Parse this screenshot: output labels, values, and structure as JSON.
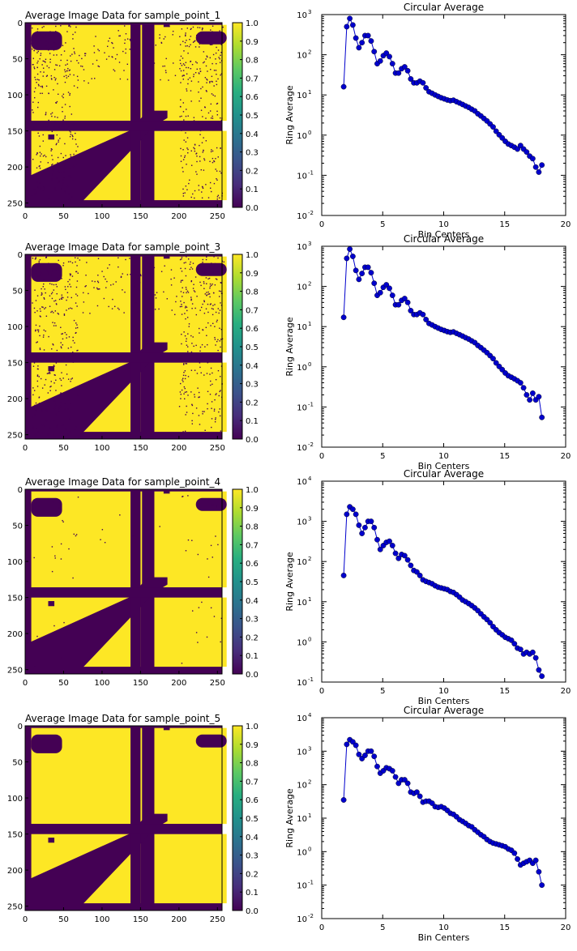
{
  "figure": {
    "background": "#ffffff"
  },
  "chart_data": [
    {
      "type": "heatmap",
      "title": "Average Image Data for sample_point_1",
      "xlim": [
        0,
        256
      ],
      "ylim": [
        256,
        0
      ],
      "xticks": [
        0,
        50,
        100,
        150,
        200,
        250
      ],
      "yticks": [
        0,
        50,
        100,
        150,
        200,
        250
      ],
      "colorbar": {
        "range": [
          0,
          1
        ],
        "ticks": [
          "0.0",
          "0.1",
          "0.2",
          "0.3",
          "0.4",
          "0.5",
          "0.6",
          "0.7",
          "0.8",
          "0.9",
          "1.0"
        ],
        "colormap": "viridis"
      },
      "speckle": "heavy",
      "colors": {
        "low": "#440154",
        "high": "#fde725"
      }
    },
    {
      "type": "scatter",
      "title": "Circular Average",
      "xlabel": "Bin Centers",
      "ylabel": "Ring Average",
      "xlim": [
        0,
        20
      ],
      "xticks": [
        0,
        5,
        10,
        15,
        20
      ],
      "yscale": "log",
      "ylim_exp": [
        -2,
        3
      ],
      "marker_color": "#0000cc",
      "x": [
        1.8,
        2.05,
        2.3,
        2.55,
        2.8,
        3.05,
        3.3,
        3.55,
        3.8,
        4.05,
        4.3,
        4.55,
        4.8,
        5.05,
        5.3,
        5.55,
        5.8,
        6.05,
        6.3,
        6.55,
        6.8,
        7.05,
        7.3,
        7.55,
        7.8,
        8.05,
        8.3,
        8.55,
        8.8,
        9.05,
        9.3,
        9.55,
        9.8,
        10.05,
        10.3,
        10.55,
        10.8,
        11.05,
        11.3,
        11.55,
        11.8,
        12.05,
        12.3,
        12.55,
        12.8,
        13.05,
        13.3,
        13.55,
        13.8,
        14.05,
        14.3,
        14.55,
        14.8,
        15.05,
        15.3,
        15.55,
        15.8,
        16.05,
        16.3,
        16.55,
        16.8,
        17.05,
        17.3,
        17.55,
        17.8,
        18.05
      ],
      "y": [
        16,
        500,
        800,
        550,
        260,
        150,
        200,
        300,
        300,
        220,
        120,
        60,
        70,
        95,
        110,
        90,
        60,
        35,
        35,
        45,
        50,
        40,
        25,
        20,
        20,
        22,
        20,
        15,
        12,
        11,
        10,
        9.2,
        8.5,
        8,
        7.5,
        7.2,
        7.4,
        6.8,
        6.3,
        5.8,
        5.3,
        4.9,
        4.4,
        4.0,
        3.4,
        3.0,
        2.6,
        2.25,
        1.9,
        1.6,
        1.25,
        1.02,
        0.85,
        0.7,
        0.6,
        0.55,
        0.5,
        0.45,
        0.55,
        0.45,
        0.38,
        0.3,
        0.26,
        0.16,
        0.12,
        0.18
      ]
    },
    {
      "type": "heatmap",
      "title": "Average Image Data for sample_point_3",
      "xlim": [
        0,
        256
      ],
      "ylim": [
        256,
        0
      ],
      "xticks": [
        0,
        50,
        100,
        150,
        200,
        250
      ],
      "yticks": [
        0,
        50,
        100,
        150,
        200,
        250
      ],
      "colorbar": {
        "range": [
          0,
          1
        ],
        "ticks": [
          "0.0",
          "0.1",
          "0.2",
          "0.3",
          "0.4",
          "0.5",
          "0.6",
          "0.7",
          "0.8",
          "0.9",
          "1.0"
        ],
        "colormap": "viridis"
      },
      "speckle": "heavy",
      "colors": {
        "low": "#440154",
        "high": "#fde725"
      }
    },
    {
      "type": "scatter",
      "title": "Circular Average",
      "xlabel": "Bin Centers",
      "ylabel": "Ring Average",
      "xlim": [
        0,
        20
      ],
      "xticks": [
        0,
        5,
        10,
        15,
        20
      ],
      "yscale": "log",
      "ylim_exp": [
        -2,
        3
      ],
      "marker_color": "#0000cc",
      "x": [
        1.8,
        2.05,
        2.3,
        2.55,
        2.8,
        3.05,
        3.3,
        3.55,
        3.8,
        4.05,
        4.3,
        4.55,
        4.8,
        5.05,
        5.3,
        5.55,
        5.8,
        6.05,
        6.3,
        6.55,
        6.8,
        7.05,
        7.3,
        7.55,
        7.8,
        8.05,
        8.3,
        8.55,
        8.8,
        9.05,
        9.3,
        9.55,
        9.8,
        10.05,
        10.3,
        10.55,
        10.8,
        11.05,
        11.3,
        11.55,
        11.8,
        12.05,
        12.3,
        12.55,
        12.8,
        13.05,
        13.3,
        13.55,
        13.8,
        14.05,
        14.3,
        14.55,
        14.8,
        15.05,
        15.3,
        15.55,
        15.8,
        16.05,
        16.3,
        16.55,
        16.8,
        17.05,
        17.3,
        17.55,
        17.8,
        18.05
      ],
      "y": [
        17,
        500,
        850,
        560,
        250,
        150,
        210,
        300,
        300,
        220,
        120,
        60,
        70,
        95,
        110,
        90,
        60,
        35,
        35,
        45,
        50,
        40,
        25,
        20,
        20,
        22,
        20,
        15,
        12,
        11,
        10,
        9.2,
        8.5,
        8,
        7.5,
        7.2,
        7.4,
        6.8,
        6.3,
        5.8,
        5.3,
        4.9,
        4.4,
        4.0,
        3.4,
        3.0,
        2.6,
        2.25,
        1.9,
        1.6,
        1.25,
        1.02,
        0.85,
        0.7,
        0.6,
        0.55,
        0.5,
        0.45,
        0.4,
        0.3,
        0.2,
        0.15,
        0.22,
        0.15,
        0.18,
        0.055
      ]
    },
    {
      "type": "heatmap",
      "title": "Average Image Data for sample_point_4",
      "xlim": [
        0,
        256
      ],
      "ylim": [
        256,
        0
      ],
      "xticks": [
        0,
        50,
        100,
        150,
        200,
        250
      ],
      "yticks": [
        0,
        50,
        100,
        150,
        200,
        250
      ],
      "colorbar": {
        "range": [
          0,
          1
        ],
        "ticks": [
          "0.0",
          "0.1",
          "0.2",
          "0.3",
          "0.4",
          "0.5",
          "0.6",
          "0.7",
          "0.8",
          "0.9",
          "1.0"
        ],
        "colormap": "viridis"
      },
      "speckle": "light",
      "colors": {
        "low": "#440154",
        "high": "#fde725"
      }
    },
    {
      "type": "scatter",
      "title": "Circular Average",
      "xlabel": "Bin Centers",
      "ylabel": "Ring Average",
      "xlim": [
        0,
        20
      ],
      "xticks": [
        0,
        5,
        10,
        15,
        20
      ],
      "yscale": "log",
      "ylim_exp": [
        -1,
        4
      ],
      "marker_color": "#0000cc",
      "x": [
        1.8,
        2.05,
        2.3,
        2.55,
        2.8,
        3.05,
        3.3,
        3.55,
        3.8,
        4.05,
        4.3,
        4.55,
        4.8,
        5.05,
        5.3,
        5.55,
        5.8,
        6.05,
        6.3,
        6.55,
        6.8,
        7.05,
        7.3,
        7.55,
        7.8,
        8.05,
        8.3,
        8.55,
        8.8,
        9.05,
        9.3,
        9.55,
        9.8,
        10.05,
        10.3,
        10.55,
        10.8,
        11.05,
        11.3,
        11.55,
        11.8,
        12.05,
        12.3,
        12.55,
        12.8,
        13.05,
        13.3,
        13.55,
        13.8,
        14.05,
        14.3,
        14.55,
        14.8,
        15.05,
        15.3,
        15.55,
        15.8,
        16.05,
        16.3,
        16.55,
        16.8,
        17.05,
        17.3,
        17.55,
        17.8,
        18.05
      ],
      "y": [
        45,
        1500,
        2300,
        2000,
        1500,
        800,
        500,
        700,
        1000,
        1000,
        700,
        350,
        200,
        250,
        300,
        320,
        250,
        160,
        120,
        150,
        140,
        110,
        80,
        60,
        55,
        45,
        35,
        32,
        30,
        28,
        25,
        23,
        22,
        21,
        20,
        18,
        17,
        15,
        13,
        11,
        10,
        9,
        8,
        7,
        6,
        5,
        4.2,
        3.6,
        3,
        2.4,
        2,
        1.7,
        1.5,
        1.3,
        1.2,
        1.1,
        0.9,
        0.7,
        0.65,
        0.5,
        0.55,
        0.5,
        0.55,
        0.4,
        0.2,
        0.14
      ]
    },
    {
      "type": "heatmap",
      "title": "Average Image Data for sample_point_5",
      "xlim": [
        0,
        256
      ],
      "ylim": [
        256,
        0
      ],
      "xticks": [
        0,
        50,
        100,
        150,
        200,
        250
      ],
      "yticks": [
        0,
        50,
        100,
        150,
        200,
        250
      ],
      "colorbar": {
        "range": [
          0,
          1
        ],
        "ticks": [
          "0.0",
          "0.1",
          "0.2",
          "0.3",
          "0.4",
          "0.5",
          "0.6",
          "0.7",
          "0.8",
          "0.9",
          "1.0"
        ],
        "colormap": "viridis"
      },
      "speckle": "none",
      "colors": {
        "low": "#440154",
        "high": "#fde725"
      }
    },
    {
      "type": "scatter",
      "title": "Circular Average",
      "xlabel": "Bin Centers",
      "ylabel": "Ring Average",
      "xlim": [
        0,
        20
      ],
      "xticks": [
        0,
        5,
        10,
        15,
        20
      ],
      "yscale": "log",
      "ylim_exp": [
        -2,
        4
      ],
      "marker_color": "#0000cc",
      "x": [
        1.8,
        2.05,
        2.3,
        2.55,
        2.8,
        3.05,
        3.3,
        3.55,
        3.8,
        4.05,
        4.3,
        4.55,
        4.8,
        5.05,
        5.3,
        5.55,
        5.8,
        6.05,
        6.3,
        6.55,
        6.8,
        7.05,
        7.3,
        7.55,
        7.8,
        8.05,
        8.3,
        8.55,
        8.8,
        9.05,
        9.3,
        9.55,
        9.8,
        10.05,
        10.3,
        10.55,
        10.8,
        11.05,
        11.3,
        11.55,
        11.8,
        12.05,
        12.3,
        12.55,
        12.8,
        13.05,
        13.3,
        13.55,
        13.8,
        14.05,
        14.3,
        14.55,
        14.8,
        15.05,
        15.3,
        15.55,
        15.8,
        16.05,
        16.3,
        16.55,
        16.8,
        17.05,
        17.3,
        17.55,
        17.8,
        18.05
      ],
      "y": [
        35,
        1600,
        2200,
        1900,
        1500,
        800,
        600,
        750,
        1000,
        1000,
        700,
        350,
        220,
        260,
        320,
        300,
        260,
        170,
        110,
        140,
        140,
        110,
        60,
        55,
        60,
        45,
        30,
        32,
        32,
        28,
        22,
        21,
        22,
        20,
        17,
        14,
        13,
        11,
        9,
        8,
        7,
        6,
        5.5,
        4.5,
        3.8,
        3.2,
        2.8,
        2.3,
        2,
        1.8,
        1.7,
        1.6,
        1.5,
        1.4,
        1.2,
        1.1,
        0.9,
        0.6,
        0.4,
        0.45,
        0.5,
        0.55,
        0.45,
        0.55,
        0.25,
        0.1
      ]
    }
  ]
}
